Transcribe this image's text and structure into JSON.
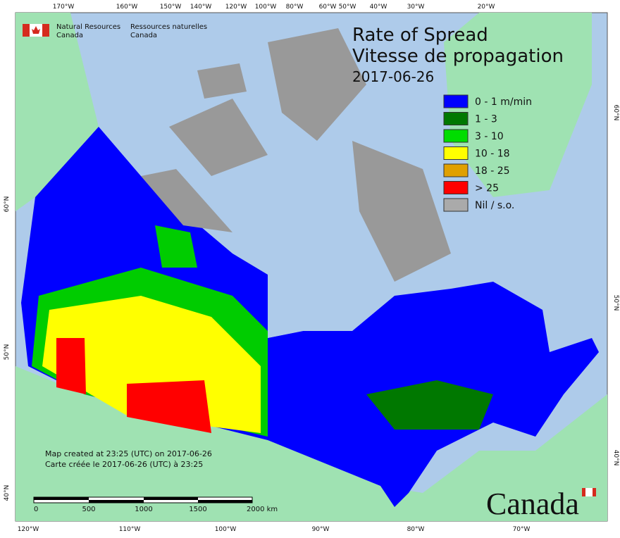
{
  "header": {
    "agency_en": [
      "Natural Resources",
      "Canada"
    ],
    "agency_fr": [
      "Ressources naturelles",
      "Canada"
    ]
  },
  "title": {
    "lines": [
      "Rate of Spread",
      "Vitesse de propagation",
      "2017-06-26"
    ]
  },
  "legend": [
    {
      "label": "0 - 1 m/min",
      "color": "#0000ff"
    },
    {
      "label": "1 - 3",
      "color": "#007800"
    },
    {
      "label": "3 - 10",
      "color": "#00dd00"
    },
    {
      "label": "10 - 18",
      "color": "#ffff00"
    },
    {
      "label": "18 - 25",
      "color": "#e0a000"
    },
    {
      "label": "> 25",
      "color": "#ff0000"
    },
    {
      "label": "Nil / s.o.",
      "color": "#aaaaaa"
    }
  ],
  "graticule": {
    "top": [
      "170°W",
      "160°W",
      "150°W",
      "140°W",
      "120°W",
      "100°W",
      "80°W",
      "60°W",
      "50°W",
      "40°W",
      "30°W",
      "20°W"
    ],
    "bottom": [
      "120°W",
      "110°W",
      "100°W",
      "90°W",
      "80°W",
      "70°W"
    ],
    "left": [
      "60°N",
      "50°N",
      "40°N"
    ],
    "right": [
      "60°N",
      "50°N",
      "40°N"
    ]
  },
  "footer": {
    "notes": [
      "Map created at 23:25 (UTC) on 2017-06-26",
      "Carte créée le 2017-06-26 (UTC) à 23:25"
    ],
    "scale": [
      "0",
      "500",
      "1000",
      "1500",
      "2000 km"
    ],
    "wordmark": "Canada"
  }
}
